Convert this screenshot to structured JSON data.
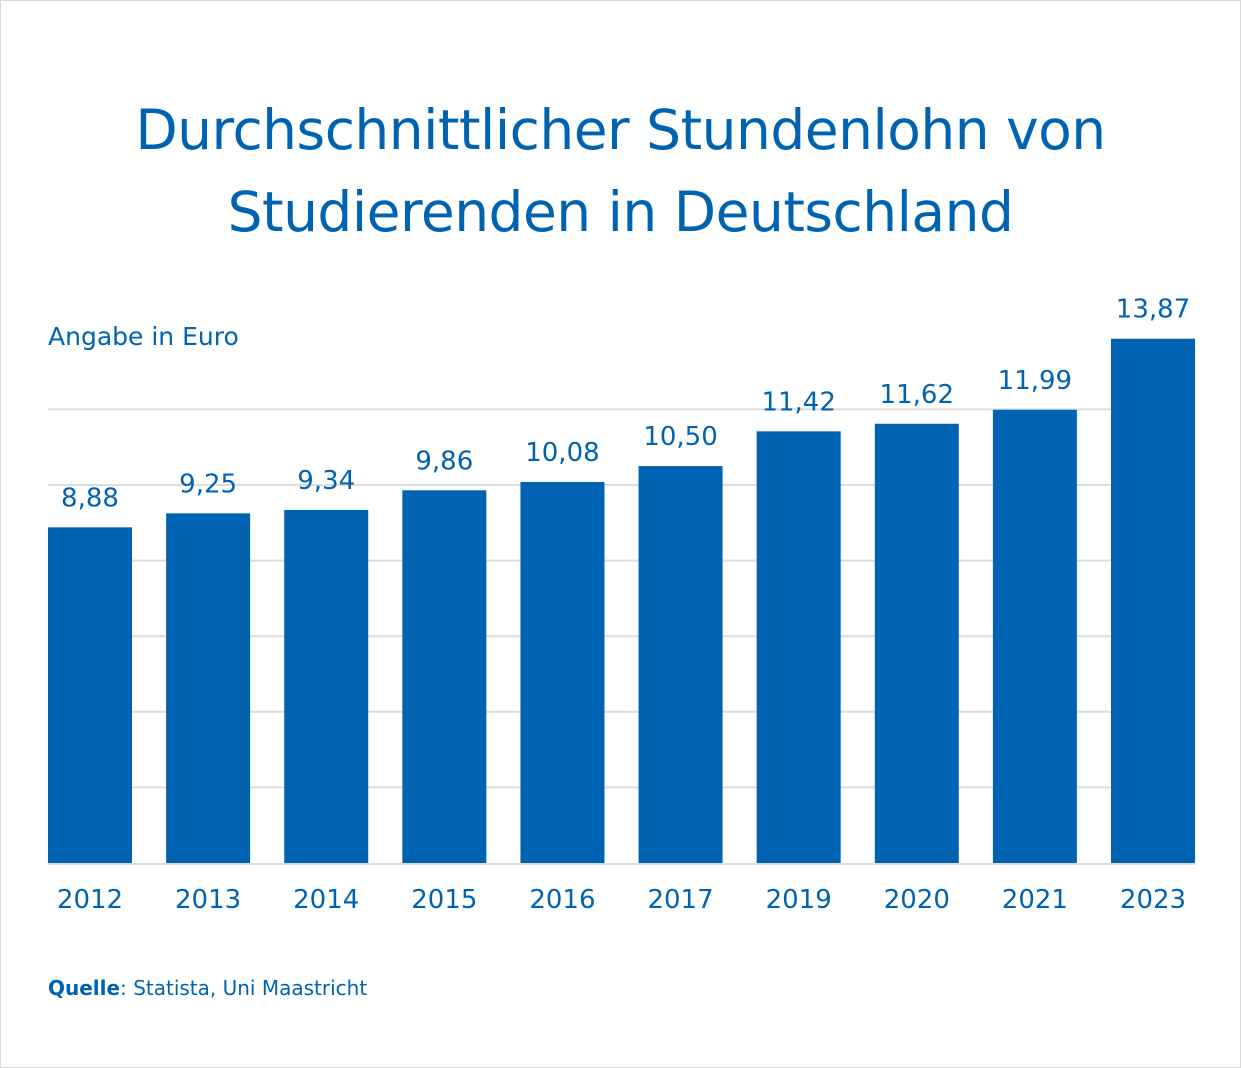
{
  "chart_data": {
    "type": "bar",
    "title_lines": [
      "Durchschnittlicher Stundenlohn von",
      "Studierenden in Deutschland"
    ],
    "unit_label": "Angabe in Euro",
    "categories": [
      "2012",
      "2013",
      "2014",
      "2015",
      "2016",
      "2017",
      "2019",
      "2020",
      "2021",
      "2023"
    ],
    "values": [
      8.88,
      9.25,
      9.34,
      9.86,
      10.08,
      10.5,
      11.42,
      11.62,
      11.99,
      13.87
    ],
    "value_labels": [
      "8,88",
      "9,25",
      "9,34",
      "9,86",
      "10,08",
      "10,50",
      "11,42",
      "11,62",
      "11,99",
      "13,87"
    ],
    "ylim": [
      0,
      14
    ],
    "gridlines": [
      2,
      4,
      6,
      8,
      10,
      12
    ],
    "grid": true,
    "xlabel": "",
    "ylabel": "",
    "bar_color": "#0063b1",
    "text_color": "#0063b1"
  },
  "source": {
    "label": "Quelle",
    "text": ": Statista, Uni Maastricht"
  }
}
